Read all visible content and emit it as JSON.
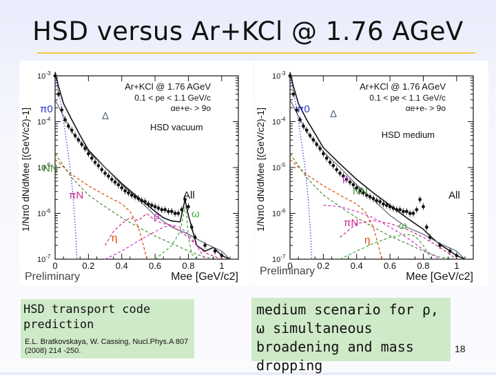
{
  "slide": {
    "title": "HSD versus Ar+KCl @ 1.76 AGeV",
    "page_number": "18",
    "accent_color": "#f0c84a"
  },
  "captions": {
    "left_main": "HSD transport code prediction",
    "left_ref": "E.L. Bratkovskaya, W. Cassing, Nucl.Phys.A 807 (2008) 214 -250.",
    "right_main": "medium scenario for ρ, ω simultaneous broadening and mass dropping"
  },
  "chart_data": [
    {
      "type": "line",
      "panel": "left",
      "title": "Ar+KCl @ 1.76 AGeV",
      "cuts": [
        "0.1 < pe < 1.1 GeV/c",
        "αe+e- > 9o"
      ],
      "scenario": "HSD vacuum",
      "xlabel": "Mee [GeV/c2]",
      "ylabel": "1/Nπ0 dN/dMee [(GeV/c2)-1]",
      "watermark": "Preliminary",
      "xlim": [
        0,
        1.1
      ],
      "ylim": [
        1e-07,
        0.001
      ],
      "yscale": "log",
      "x_ticks": [
        "0",
        "0.2",
        "0.4",
        "0.6",
        "0.8",
        "1"
      ],
      "y_ticks": [
        "10-7",
        "10-6",
        "10-5",
        "10-4",
        "10-3"
      ],
      "series": [
        {
          "name": "All",
          "color": "#111111",
          "style": "solid",
          "x": [
            0.0,
            0.02,
            0.05,
            0.1,
            0.15,
            0.2,
            0.3,
            0.4,
            0.5,
            0.6,
            0.65,
            0.7,
            0.75,
            0.78,
            0.8,
            0.85,
            0.9,
            0.95,
            1.0,
            1.05
          ],
          "y": [
            0.0012,
            0.0006,
            0.00025,
            0.00011,
            5e-05,
            2.4e-05,
            1e-05,
            4.5e-06,
            2.2e-06,
            1.1e-06,
            8e-07,
            6.8e-07,
            6.5e-07,
            2e-06,
            9e-07,
            2e-07,
            1.5e-07,
            1.8e-07,
            1.2e-07,
            1e-07
          ]
        },
        {
          "name": "π0",
          "color": "#2233cc",
          "style": "dotted",
          "x": [
            0.0,
            0.03,
            0.06,
            0.09,
            0.11,
            0.125,
            0.13
          ],
          "y": [
            0.0011,
            0.0003,
            6e-05,
            1e-05,
            2e-06,
            3e-07,
            1e-07
          ]
        },
        {
          "name": "Δ",
          "color": "#556677",
          "style": "solid",
          "x": [
            0.0,
            0.1,
            0.2,
            0.3,
            0.4,
            0.5,
            0.6,
            0.7,
            0.8,
            0.9,
            1.0,
            1.05
          ],
          "y": [
            0.0003,
            6e-05,
            2.2e-05,
            1e-05,
            4.2e-06,
            2e-06,
            9e-07,
            5e-07,
            3.5e-07,
            2.2e-07,
            1.5e-07,
            1e-07
          ]
        },
        {
          "name": "η",
          "color": "#dd4400",
          "style": "dashed",
          "x": [
            0.0,
            0.1,
            0.2,
            0.3,
            0.4,
            0.45,
            0.5,
            0.53,
            0.55
          ],
          "y": [
            1.5e-05,
            7e-06,
            4e-06,
            2.5e-06,
            1.6e-06,
            1.1e-06,
            5e-07,
            2e-07,
            1e-07
          ]
        },
        {
          "name": "NN",
          "color": "#448833",
          "style": "dashed",
          "x": [
            0.0,
            0.1,
            0.2,
            0.3,
            0.4,
            0.5,
            0.6,
            0.7,
            0.8,
            0.9,
            1.0
          ],
          "y": [
            2e-05,
            6e-06,
            2.5e-06,
            1.4e-06,
            8e-07,
            5e-07,
            3.2e-07,
            2.2e-07,
            1.5e-07,
            1.1e-07,
            1e-07
          ]
        },
        {
          "name": "πN",
          "color": "#cc2288",
          "style": "dashed",
          "x": [
            0.3,
            0.35,
            0.4,
            0.45,
            0.5,
            0.55,
            0.6,
            0.65,
            0.7,
            0.75,
            0.8,
            0.85,
            0.9,
            1.0
          ],
          "y": [
            2e-07,
            4e-07,
            6e-07,
            8e-07,
            7e-07,
            1e-06,
            7e-07,
            6e-07,
            5.5e-07,
            4e-07,
            3e-07,
            2e-07,
            1.4e-07,
            1e-07
          ]
        },
        {
          "name": "ρ",
          "color": "#cc33cc",
          "style": "dashed",
          "x": [
            0.3,
            0.4,
            0.5,
            0.6,
            0.65,
            0.7,
            0.75,
            0.8,
            0.85,
            0.9
          ],
          "y": [
            1e-07,
            1.5e-07,
            2.5e-07,
            4e-07,
            5e-07,
            5.5e-07,
            5e-07,
            3.5e-07,
            2e-07,
            1e-07
          ]
        },
        {
          "name": "ω",
          "color": "#33aa33",
          "style": "dashed",
          "x": [
            0.6,
            0.65,
            0.7,
            0.75,
            0.77,
            0.78,
            0.79,
            0.8,
            0.82,
            0.85
          ],
          "y": [
            1e-07,
            1.4e-07,
            2e-07,
            4e-07,
            9e-07,
            1.4e-06,
            9e-07,
            3e-07,
            1.3e-07,
            1e-07
          ]
        }
      ],
      "data_points": {
        "x": [
          0.0,
          0.02,
          0.04,
          0.06,
          0.08,
          0.1,
          0.12,
          0.14,
          0.16,
          0.18,
          0.2,
          0.22,
          0.24,
          0.26,
          0.28,
          0.3,
          0.32,
          0.34,
          0.36,
          0.38,
          0.4,
          0.42,
          0.44,
          0.46,
          0.48,
          0.5,
          0.52,
          0.54,
          0.56,
          0.58,
          0.6,
          0.62,
          0.64,
          0.66,
          0.68,
          0.7,
          0.72,
          0.74,
          0.76,
          0.78,
          0.8,
          0.82,
          0.84,
          0.9,
          0.96,
          1.0
        ],
        "y": [
          0.001,
          0.0004,
          0.00018,
          0.00011,
          8e-05,
          6.5e-05,
          5e-05,
          4e-05,
          3.2e-05,
          2.6e-05,
          2e-05,
          1.6e-05,
          1.3e-05,
          1.1e-05,
          9e-06,
          7.5e-06,
          6.5e-06,
          5.5e-06,
          4.8e-06,
          4.2e-06,
          3.6e-06,
          3.1e-06,
          2.8e-06,
          2.5e-06,
          2.3e-06,
          2.1e-06,
          1.9e-06,
          1.8e-06,
          1.6e-06,
          1.5e-06,
          1.4e-06,
          1.3e-06,
          1.2e-06,
          1.2e-06,
          1.1e-06,
          1.1e-06,
          1e-06,
          1e-06,
          1.2e-06,
          2e-06,
          1.4e-06,
          5e-07,
          3e-07,
          2e-07,
          1.5e-07,
          1.2e-07
        ]
      }
    },
    {
      "type": "line",
      "panel": "right",
      "title": "Ar+KCl @ 1.76 AGeV",
      "cuts": [
        "0.1 < pe < 1.1 GeV/c",
        "αe+e- > 9o"
      ],
      "scenario": "HSD medium",
      "xlabel": "Mee [GeV/c2]",
      "ylabel": "1/Nπ0 dN/dMee [(GeV/c2)-1]",
      "watermark": "Preliminary",
      "xlim": [
        0,
        1.1
      ],
      "ylim": [
        1e-07,
        0.001
      ],
      "yscale": "log",
      "x_ticks": [
        "0",
        "0.2",
        "0.4",
        "0.6",
        "0.8",
        "1"
      ],
      "y_ticks": [
        "10-7",
        "10-6",
        "10-5",
        "10-4",
        "10-3"
      ],
      "series": [
        {
          "name": "All",
          "color": "#111111",
          "style": "solid",
          "x": [
            0.0,
            0.02,
            0.05,
            0.1,
            0.15,
            0.2,
            0.3,
            0.4,
            0.5,
            0.6,
            0.7,
            0.75,
            0.8,
            0.85,
            0.9,
            0.95,
            1.0,
            1.05
          ],
          "y": [
            0.0012,
            0.0006,
            0.00025,
            0.00011,
            5.5e-05,
            2.7e-05,
            1.2e-05,
            5.5e-06,
            2.8e-06,
            1.5e-06,
            8e-07,
            6e-07,
            4.5e-07,
            3e-07,
            2.1e-07,
            1.6e-07,
            1.2e-07,
            1e-07
          ]
        },
        {
          "name": "π0",
          "color": "#2233cc",
          "style": "dotted",
          "x": [
            0.0,
            0.03,
            0.06,
            0.09,
            0.11,
            0.125,
            0.13
          ],
          "y": [
            0.0011,
            0.0003,
            6e-05,
            1e-05,
            2e-06,
            3e-07,
            1e-07
          ]
        },
        {
          "name": "Δ",
          "color": "#556677",
          "style": "solid",
          "x": [
            0.0,
            0.1,
            0.2,
            0.3,
            0.4,
            0.5,
            0.6,
            0.7,
            0.8,
            0.9,
            1.0,
            1.05
          ],
          "y": [
            0.0003,
            6e-05,
            2.2e-05,
            1e-05,
            4.2e-06,
            2e-06,
            9e-07,
            5e-07,
            3.5e-07,
            2.2e-07,
            1.5e-07,
            1e-07
          ]
        },
        {
          "name": "η",
          "color": "#dd4400",
          "style": "dashed",
          "x": [
            0.0,
            0.1,
            0.2,
            0.3,
            0.4,
            0.45,
            0.5,
            0.53,
            0.55
          ],
          "y": [
            1.5e-05,
            7e-06,
            4e-06,
            2.5e-06,
            1.6e-06,
            1.1e-06,
            5e-07,
            2e-07,
            1e-07
          ]
        },
        {
          "name": "NN",
          "color": "#448833",
          "style": "dashed",
          "x": [
            0.0,
            0.1,
            0.2,
            0.3,
            0.4,
            0.5,
            0.6,
            0.7,
            0.8,
            0.9,
            1.0
          ],
          "y": [
            2e-05,
            6e-06,
            2.5e-06,
            1.4e-06,
            8e-07,
            5e-07,
            3.2e-07,
            2.2e-07,
            1.5e-07,
            1.1e-07,
            1e-07
          ]
        },
        {
          "name": "πN",
          "color": "#cc2288",
          "style": "dashed",
          "x": [
            0.3,
            0.4,
            0.5,
            0.6,
            0.7,
            0.8,
            0.9,
            1.0
          ],
          "y": [
            3e-07,
            6e-07,
            7e-07,
            6e-07,
            4.5e-07,
            3e-07,
            1.8e-07,
            1e-07
          ]
        },
        {
          "name": "ρ",
          "color": "#cc33cc",
          "style": "dashed",
          "x": [
            0.2,
            0.3,
            0.4,
            0.5,
            0.6,
            0.7,
            0.8,
            0.9
          ],
          "y": [
            1.5e-06,
            1.4e-06,
            1.1e-06,
            8e-07,
            5e-07,
            3e-07,
            1.6e-07,
            1e-07
          ]
        },
        {
          "name": "ω",
          "color": "#33aa33",
          "style": "dashed",
          "x": [
            0.3,
            0.4,
            0.5,
            0.6,
            0.7,
            0.75,
            0.8,
            0.85
          ],
          "y": [
            1e-07,
            1.5e-07,
            2.2e-07,
            3e-07,
            3.5e-07,
            3.2e-07,
            2e-07,
            1e-07
          ]
        }
      ],
      "data_points": {
        "x": [
          0.0,
          0.02,
          0.04,
          0.06,
          0.08,
          0.1,
          0.12,
          0.14,
          0.16,
          0.18,
          0.2,
          0.22,
          0.24,
          0.26,
          0.28,
          0.3,
          0.32,
          0.34,
          0.36,
          0.38,
          0.4,
          0.42,
          0.44,
          0.46,
          0.48,
          0.5,
          0.52,
          0.54,
          0.56,
          0.58,
          0.6,
          0.62,
          0.64,
          0.66,
          0.68,
          0.7,
          0.72,
          0.74,
          0.76,
          0.78,
          0.8,
          0.82,
          0.84,
          0.9,
          0.96,
          1.0
        ],
        "y": [
          0.001,
          0.0004,
          0.00018,
          0.00011,
          8e-05,
          6.5e-05,
          5e-05,
          4e-05,
          3.2e-05,
          2.6e-05,
          2e-05,
          1.6e-05,
          1.3e-05,
          1.1e-05,
          9e-06,
          7.5e-06,
          6.5e-06,
          5.5e-06,
          4.8e-06,
          4.2e-06,
          3.6e-06,
          3.1e-06,
          2.8e-06,
          2.5e-06,
          2.3e-06,
          2.1e-06,
          1.9e-06,
          1.8e-06,
          1.6e-06,
          1.5e-06,
          1.4e-06,
          1.3e-06,
          1.2e-06,
          1.2e-06,
          1.1e-06,
          1.1e-06,
          1e-06,
          1e-06,
          1.2e-06,
          2e-06,
          1.4e-06,
          5e-07,
          3e-07,
          2e-07,
          1.5e-07,
          1.2e-07
        ]
      }
    }
  ]
}
